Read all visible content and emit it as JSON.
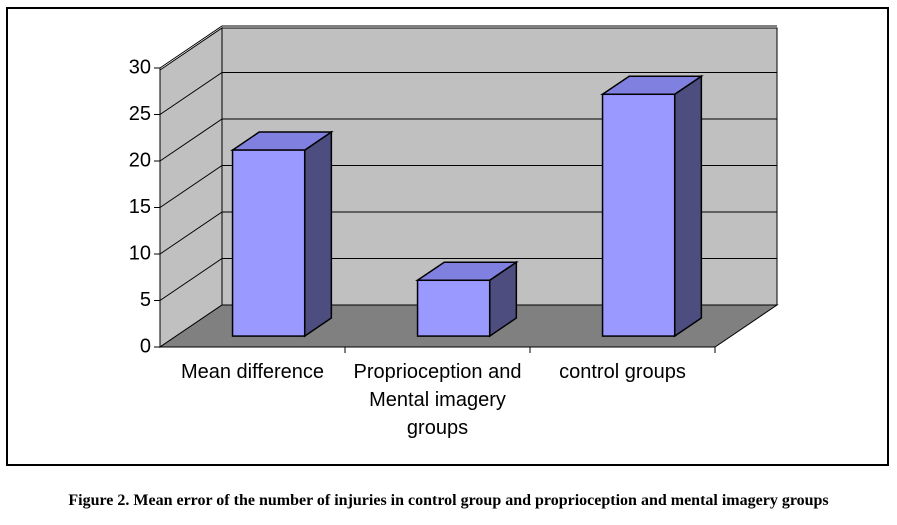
{
  "chart_data": {
    "type": "bar",
    "categories": [
      "Mean difference",
      "Proprioception and Mental imagery groups",
      "control groups"
    ],
    "values": [
      20,
      6,
      26
    ],
    "color": "#9999ff",
    "ylim": [
      0,
      30
    ],
    "yticks": [
      0,
      5,
      10,
      15,
      20,
      25,
      30
    ],
    "grid": true,
    "caption": "Figure 2. Mean error of the number of injuries in control group and proprioception and mental imagery groups"
  }
}
